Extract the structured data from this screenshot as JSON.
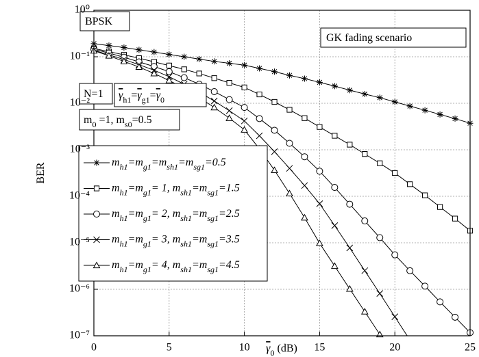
{
  "chart_data": {
    "type": "line",
    "yscale": "log",
    "grid": true,
    "xlabel": "~{γ}_{0} (dB)",
    "ylabel": "BER",
    "annotations": [
      "BPSK",
      "GK fading scenario",
      "N=1",
      "~{γ}_{h1}=~{γ}_{g1}=~{γ}_{0}",
      "m_{0} =1, m_{s0}=0.5"
    ],
    "x": [
      0,
      1,
      2,
      3,
      4,
      5,
      6,
      7,
      8,
      9,
      10,
      11,
      12,
      13,
      14,
      15,
      16,
      17,
      18,
      19,
      20,
      21,
      22,
      23,
      24,
      25
    ],
    "xlim": [
      0,
      25
    ],
    "xticks": [
      0,
      5,
      10,
      15,
      20,
      25
    ],
    "ylim": [
      1e-07,
      1
    ],
    "yticks": [
      {
        "value": 1e-07,
        "label": "10⁻⁷"
      },
      {
        "value": 1e-06,
        "label": "10⁻⁶"
      },
      {
        "value": 1e-05,
        "label": "10⁻⁵"
      },
      {
        "value": 0.0001,
        "label": "10⁻⁴"
      },
      {
        "value": 0.001,
        "label": "10⁻³"
      },
      {
        "value": 0.01,
        "label": "10⁻²"
      },
      {
        "value": 0.1,
        "label": "10⁻¹"
      },
      {
        "value": 1,
        "label": "10⁰"
      }
    ],
    "series": [
      {
        "name": "m_{h1}=m_{g1}=m_{sh1}=m_{sg1}=0.5",
        "color": "#000000",
        "marker": "asterisk",
        "values": [
          0.191,
          0.174,
          0.158,
          0.141,
          0.126,
          0.112,
          0.1,
          0.0891,
          0.0794,
          0.0724,
          0.0661,
          0.0562,
          0.0479,
          0.0398,
          0.0339,
          0.0282,
          0.0234,
          0.0191,
          0.0158,
          0.0132,
          0.0107,
          0.0087,
          0.00708,
          0.00575,
          0.00468,
          0.00372
        ]
      },
      {
        "name": "m_{h1}=m_{g1}= 1, m_{sh1}=m_{sg1}=1.5",
        "color": "#000000",
        "marker": "square",
        "values": [
          0.151,
          0.129,
          0.11,
          0.0933,
          0.0776,
          0.0646,
          0.0537,
          0.0437,
          0.0347,
          0.0275,
          0.0219,
          0.0155,
          0.0107,
          0.00724,
          0.00479,
          0.00309,
          0.002,
          0.00129,
          0.000813,
          0.000513,
          0.000316,
          0.000182,
          0.000105,
          5.89e-05,
          3.31e-05,
          1.82e-05
        ]
      },
      {
        "name": "m_{h1}=m_{g1}= 2, m_{sh1}=m_{sg1}=2.5",
        "color": "#000000",
        "marker": "circle",
        "values": [
          0.145,
          0.12,
          0.0977,
          0.0776,
          0.0617,
          0.0479,
          0.0355,
          0.0257,
          0.0178,
          0.012,
          0.00813,
          0.00468,
          0.00263,
          0.00138,
          0.000708,
          0.000347,
          0.000155,
          6.76e-05,
          2.95e-05,
          1.29e-05,
          5.5e-06,
          2.51e-06,
          1.17e-06,
          5.37e-07,
          2.51e-07,
          1.17e-07
        ]
      },
      {
        "name": "m_{h1}=m_{g1}= 3, m_{sh1}=m_{sg1}=3.5",
        "color": "#000000",
        "marker": "cross",
        "values": [
          0.138,
          0.11,
          0.0871,
          0.0676,
          0.0513,
          0.0372,
          0.0257,
          0.0174,
          0.0112,
          0.00692,
          0.00417,
          0.002,
          0.000912,
          0.000398,
          0.00017,
          6.92e-05,
          2.34e-05,
          7.76e-06,
          2.51e-06,
          8.13e-07,
          2.57e-07,
          8.13e-08,
          null,
          null,
          null,
          null
        ]
      },
      {
        "name": "m_{h1}=m_{g1}= 4, m_{sh1}=m_{sg1}=4.5",
        "color": "#000000",
        "marker": "triangle",
        "values": [
          0.135,
          0.105,
          0.0794,
          0.0603,
          0.0437,
          0.0309,
          0.0209,
          0.0132,
          0.00813,
          0.00479,
          0.00269,
          0.00105,
          0.000363,
          0.000115,
          3.47e-05,
          9.77e-06,
          3.16e-06,
          1.02e-06,
          3.31e-07,
          1.07e-07,
          null,
          null,
          null,
          null,
          null,
          null
        ]
      }
    ]
  }
}
